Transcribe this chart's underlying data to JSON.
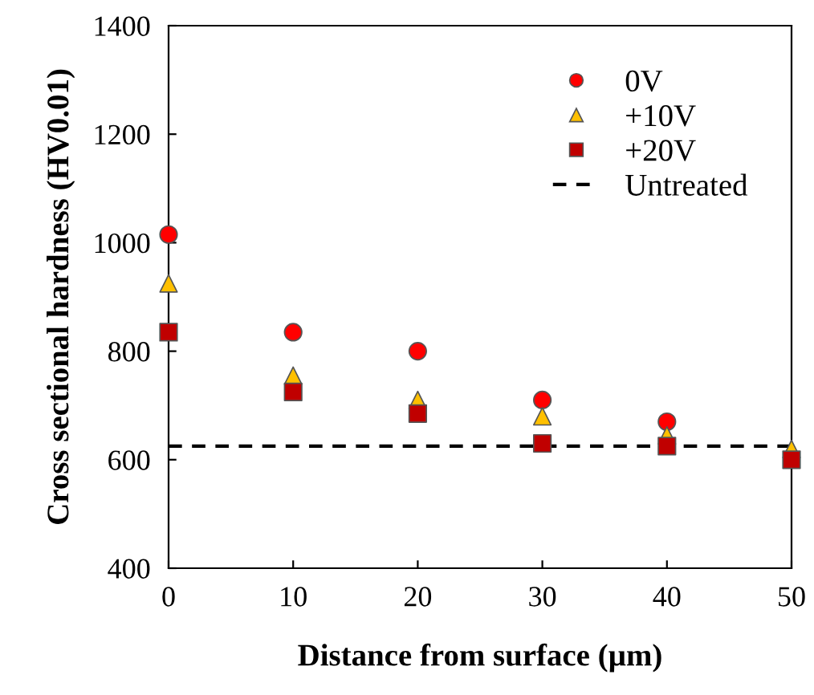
{
  "chart_data": {
    "type": "scatter",
    "xlabel": "Distance from surface (µm)",
    "ylabel": "Cross sectional hardness (HV0.01)",
    "x": [
      0,
      10,
      20,
      30,
      40,
      50
    ],
    "series": [
      {
        "name": "0V",
        "color": "#ff0000",
        "marker": "circle",
        "values": [
          1015,
          835,
          800,
          710,
          670,
          null
        ]
      },
      {
        "name": "+10V",
        "color": "#ffc000",
        "marker": "triangle",
        "values": [
          925,
          755,
          710,
          680,
          645,
          620
        ]
      },
      {
        "name": "+20V",
        "color": "#c00000",
        "marker": "square",
        "values": [
          835,
          725,
          685,
          630,
          625,
          600
        ]
      }
    ],
    "ref_lines": [
      {
        "axis": "y",
        "value": 625,
        "label": "Untreated",
        "color": "#000000",
        "line_style": "dashed"
      }
    ],
    "xlim": [
      0,
      50
    ],
    "xticks": [
      0,
      10,
      20,
      30,
      40,
      50
    ],
    "ylim": [
      400,
      1400
    ],
    "yticks": [
      400,
      600,
      800,
      1000,
      1200,
      1400
    ],
    "grid": false,
    "legend": "top right"
  }
}
